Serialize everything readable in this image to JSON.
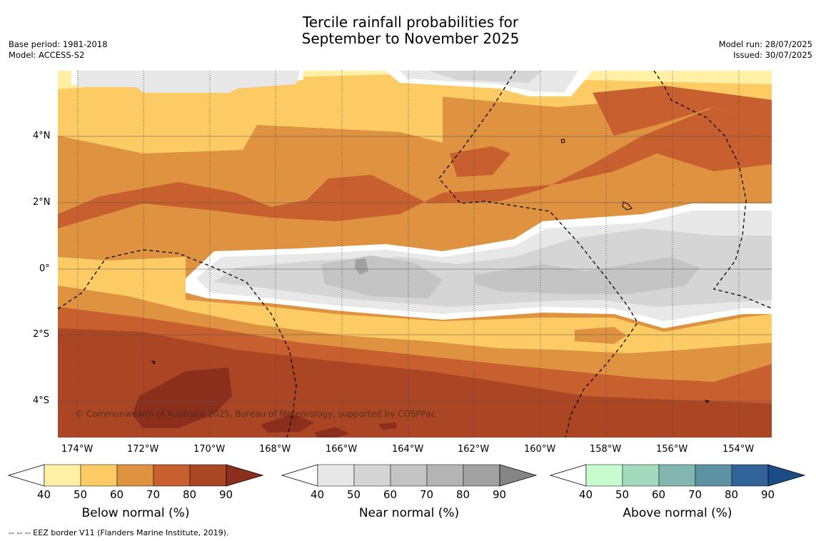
{
  "title_line1": "Tercile rainfall probabilities for",
  "title_line2": "September to November 2025",
  "meta_left": [
    "Base period: 1981-2018",
    "Model: ACCESS-S2"
  ],
  "meta_right": [
    "Model run: 28/07/2025",
    "Issued: 30/07/2025"
  ],
  "copyright": "© Commonwealth of Australia 2025, Bureau of Meteorology, supported by COSPPac",
  "lat_ticks": [
    "4°N",
    "2°N",
    "0°",
    "2°S",
    "4°S"
  ],
  "lon_ticks": [
    "174°W",
    "172°W",
    "170°W",
    "168°W",
    "166°W",
    "164°W",
    "162°W",
    "160°W",
    "158°W",
    "156°W",
    "154°W"
  ],
  "colorbars": [
    {
      "label": "Below normal (%)",
      "ticks": [
        "40",
        "50",
        "60",
        "70",
        "80",
        "90"
      ],
      "colors": [
        "#fff0a5",
        "#fdcb64",
        "#df9340",
        "#c75f2e",
        "#ab4624",
        "#8c2e1c"
      ]
    },
    {
      "label": "Near normal (%)",
      "ticks": [
        "40",
        "50",
        "60",
        "70",
        "80",
        "90"
      ],
      "colors": [
        "#e8e8e8",
        "#d5d5d5",
        "#c4c4c4",
        "#b4b4b4",
        "#a1a1a1",
        "#858585"
      ]
    },
    {
      "label": "Above normal (%)",
      "ticks": [
        "40",
        "50",
        "60",
        "70",
        "80",
        "90"
      ],
      "colors": [
        "#c8fbcd",
        "#a3d9bd",
        "#83b6b1",
        "#5d92a2",
        "#316399",
        "#1c4c85"
      ]
    }
  ],
  "footnote": "--  --  -- EEZ border V11 (Flanders Marine Institute, 2019)."
}
